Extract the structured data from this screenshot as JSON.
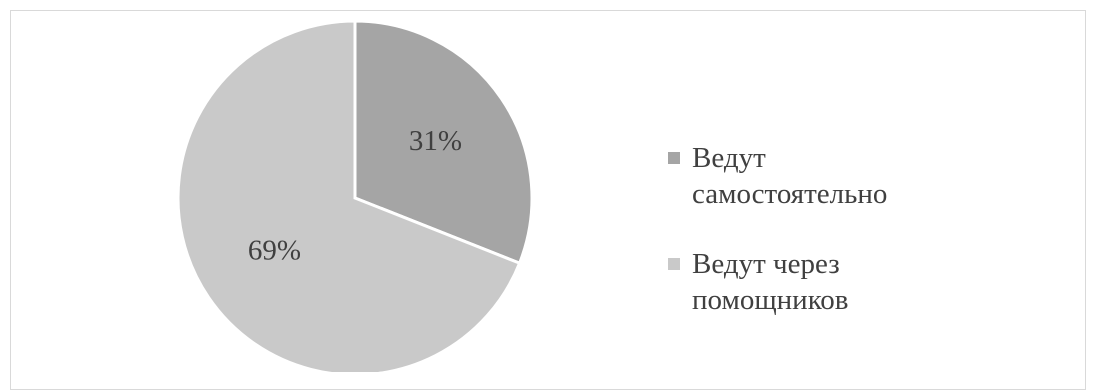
{
  "chart_data": {
    "type": "pie",
    "title": "",
    "slices": [
      {
        "label": "Ведут самостоятельно",
        "value": 31,
        "display": "31%",
        "color": "#a5a5a5"
      },
      {
        "label": "Ведут через помощников",
        "value": 69,
        "display": "69%",
        "color": "#c9c9c9"
      }
    ],
    "start_angle": "12 o'clock",
    "direction": "clockwise",
    "legend_position": "right",
    "slice_border_color": "#ffffff"
  }
}
